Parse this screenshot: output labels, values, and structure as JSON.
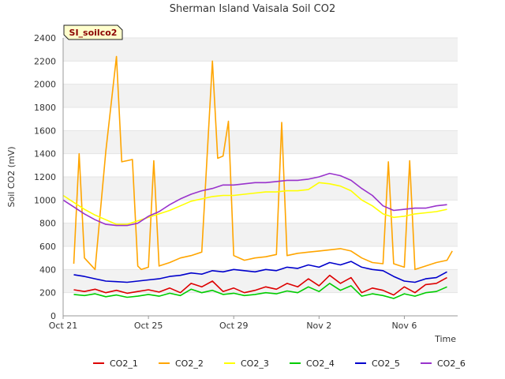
{
  "chart_data": {
    "type": "line",
    "title": "Sherman Island Vaisala Soil CO2",
    "badge": "SI_soilco2",
    "xlabel": "Time",
    "ylabel": "Soil CO2 (mV)",
    "ylim": [
      0,
      2400
    ],
    "yticks": [
      0,
      200,
      400,
      600,
      800,
      1000,
      1200,
      1400,
      1600,
      1800,
      2000,
      2200,
      2400
    ],
    "xlim": [
      "2023-10-21",
      "2023-11-08T12:00"
    ],
    "xtick_labels": [
      "Oct 21",
      "Oct 25",
      "Oct 29",
      "Nov 2",
      "Nov 6"
    ],
    "xtick_dates": [
      "2023-10-21",
      "2023-10-25",
      "2023-10-29",
      "2023-11-02",
      "2023-11-06"
    ],
    "grid": "horizontal bands",
    "legend_position": "bottom",
    "series": [
      {
        "name": "CO2_1",
        "color": "#dd0000",
        "x": [
          "2023-10-21T12:00",
          "2023-10-22",
          "2023-10-22T12:00",
          "2023-10-23",
          "2023-10-23T12:00",
          "2023-10-24",
          "2023-10-24T12:00",
          "2023-10-25",
          "2023-10-25T12:00",
          "2023-10-26",
          "2023-10-26T12:00",
          "2023-10-27",
          "2023-10-27T12:00",
          "2023-10-28",
          "2023-10-28T12:00",
          "2023-10-29",
          "2023-10-29T12:00",
          "2023-10-30",
          "2023-10-30T12:00",
          "2023-10-31",
          "2023-10-31T12:00",
          "2023-11-01",
          "2023-11-01T12:00",
          "2023-11-02",
          "2023-11-02T12:00",
          "2023-11-03",
          "2023-11-03T12:00",
          "2023-11-04",
          "2023-11-04T12:00",
          "2023-11-05",
          "2023-11-05T12:00",
          "2023-11-06",
          "2023-11-06T12:00",
          "2023-11-07",
          "2023-11-07T12:00",
          "2023-11-08"
        ],
        "values": [
          225,
          210,
          230,
          200,
          220,
          195,
          210,
          225,
          205,
          240,
          200,
          280,
          250,
          300,
          210,
          240,
          200,
          220,
          250,
          230,
          280,
          250,
          320,
          260,
          350,
          280,
          330,
          200,
          240,
          220,
          180,
          250,
          200,
          270,
          280,
          330
        ]
      },
      {
        "name": "CO2_2",
        "color": "#ffa500",
        "x": [
          "2023-10-21T12:00",
          "2023-10-21T18:00",
          "2023-10-22",
          "2023-10-22T12:00",
          "2023-10-23",
          "2023-10-23T12:00",
          "2023-10-23T18:00",
          "2023-10-24",
          "2023-10-24T06:00",
          "2023-10-24T12:00",
          "2023-10-24T16:00",
          "2023-10-25",
          "2023-10-25T06:00",
          "2023-10-25T12:00",
          "2023-10-26",
          "2023-10-26T12:00",
          "2023-10-27",
          "2023-10-27T12:00",
          "2023-10-28",
          "2023-10-28T06:00",
          "2023-10-28T12:00",
          "2023-10-28T18:00",
          "2023-10-29",
          "2023-10-29T12:00",
          "2023-10-30",
          "2023-10-30T12:00",
          "2023-10-31",
          "2023-10-31T06:00",
          "2023-10-31T12:00",
          "2023-11-01",
          "2023-11-01T12:00",
          "2023-11-02",
          "2023-11-02T12:00",
          "2023-11-03",
          "2023-11-03T12:00",
          "2023-11-04",
          "2023-11-04T12:00",
          "2023-11-05",
          "2023-11-05T06:00",
          "2023-11-05T12:00",
          "2023-11-06",
          "2023-11-06T06:00",
          "2023-11-06T12:00",
          "2023-11-07",
          "2023-11-07T12:00",
          "2023-11-08",
          "2023-11-08T06:00"
        ],
        "values": [
          450,
          1400,
          500,
          400,
          1420,
          2240,
          1330,
          1340,
          1350,
          430,
          400,
          420,
          1340,
          430,
          460,
          500,
          520,
          550,
          2200,
          1360,
          1380,
          1680,
          520,
          480,
          500,
          510,
          530,
          1670,
          520,
          540,
          550,
          560,
          570,
          580,
          560,
          500,
          460,
          450,
          1330,
          450,
          420,
          1340,
          400,
          430,
          460,
          480,
          560
        ]
      },
      {
        "name": "CO2_3",
        "color": "#ffff00",
        "x": [
          "2023-10-21",
          "2023-10-21T12:00",
          "2023-10-22",
          "2023-10-22T12:00",
          "2023-10-23",
          "2023-10-23T12:00",
          "2023-10-24",
          "2023-10-24T12:00",
          "2023-10-25",
          "2023-10-25T12:00",
          "2023-10-26",
          "2023-10-26T12:00",
          "2023-10-27",
          "2023-10-27T12:00",
          "2023-10-28",
          "2023-10-28T12:00",
          "2023-10-29",
          "2023-10-29T12:00",
          "2023-10-30",
          "2023-10-30T12:00",
          "2023-10-31",
          "2023-10-31T12:00",
          "2023-11-01",
          "2023-11-01T12:00",
          "2023-11-02",
          "2023-11-02T12:00",
          "2023-11-03",
          "2023-11-03T12:00",
          "2023-11-04",
          "2023-11-04T12:00",
          "2023-11-05",
          "2023-11-05T12:00",
          "2023-11-06",
          "2023-11-06T12:00",
          "2023-11-07",
          "2023-11-07T12:00",
          "2023-11-08"
        ],
        "values": [
          1040,
          980,
          920,
          870,
          830,
          790,
          790,
          820,
          850,
          880,
          910,
          950,
          990,
          1010,
          1030,
          1040,
          1040,
          1050,
          1060,
          1070,
          1070,
          1080,
          1080,
          1090,
          1150,
          1140,
          1120,
          1080,
          1000,
          950,
          880,
          850,
          860,
          880,
          890,
          900,
          920
        ]
      },
      {
        "name": "CO2_4",
        "color": "#00cc00",
        "x": [
          "2023-10-21T12:00",
          "2023-10-22",
          "2023-10-22T12:00",
          "2023-10-23",
          "2023-10-23T12:00",
          "2023-10-24",
          "2023-10-24T12:00",
          "2023-10-25",
          "2023-10-25T12:00",
          "2023-10-26",
          "2023-10-26T12:00",
          "2023-10-27",
          "2023-10-27T12:00",
          "2023-10-28",
          "2023-10-28T12:00",
          "2023-10-29",
          "2023-10-29T12:00",
          "2023-10-30",
          "2023-10-30T12:00",
          "2023-10-31",
          "2023-10-31T12:00",
          "2023-11-01",
          "2023-11-01T12:00",
          "2023-11-02",
          "2023-11-02T12:00",
          "2023-11-03",
          "2023-11-03T12:00",
          "2023-11-04",
          "2023-11-04T12:00",
          "2023-11-05",
          "2023-11-05T12:00",
          "2023-11-06",
          "2023-11-06T12:00",
          "2023-11-07",
          "2023-11-07T12:00",
          "2023-11-08"
        ],
        "values": [
          185,
          175,
          190,
          165,
          180,
          160,
          170,
          185,
          170,
          195,
          175,
          230,
          200,
          220,
          185,
          195,
          175,
          185,
          200,
          190,
          215,
          200,
          250,
          210,
          280,
          220,
          260,
          170,
          190,
          175,
          150,
          190,
          170,
          200,
          210,
          250
        ]
      },
      {
        "name": "CO2_5",
        "color": "#0000cc",
        "x": [
          "2023-10-21T12:00",
          "2023-10-22",
          "2023-10-22T12:00",
          "2023-10-23",
          "2023-10-23T12:00",
          "2023-10-24",
          "2023-10-24T12:00",
          "2023-10-25",
          "2023-10-25T12:00",
          "2023-10-26",
          "2023-10-26T12:00",
          "2023-10-27",
          "2023-10-27T12:00",
          "2023-10-28",
          "2023-10-28T12:00",
          "2023-10-29",
          "2023-10-29T12:00",
          "2023-10-30",
          "2023-10-30T12:00",
          "2023-10-31",
          "2023-10-31T12:00",
          "2023-11-01",
          "2023-11-01T12:00",
          "2023-11-02",
          "2023-11-02T12:00",
          "2023-11-03",
          "2023-11-03T12:00",
          "2023-11-04",
          "2023-11-04T12:00",
          "2023-11-05",
          "2023-11-05T12:00",
          "2023-11-06",
          "2023-11-06T12:00",
          "2023-11-07",
          "2023-11-07T12:00",
          "2023-11-08"
        ],
        "values": [
          355,
          340,
          320,
          300,
          295,
          290,
          300,
          310,
          320,
          340,
          350,
          370,
          360,
          390,
          380,
          400,
          390,
          380,
          400,
          390,
          420,
          410,
          440,
          420,
          460,
          440,
          470,
          420,
          400,
          390,
          340,
          300,
          290,
          320,
          330,
          380
        ]
      },
      {
        "name": "CO2_6",
        "color": "#9933cc",
        "x": [
          "2023-10-21",
          "2023-10-21T12:00",
          "2023-10-22",
          "2023-10-22T12:00",
          "2023-10-23",
          "2023-10-23T12:00",
          "2023-10-24",
          "2023-10-24T12:00",
          "2023-10-25",
          "2023-10-25T12:00",
          "2023-10-26",
          "2023-10-26T12:00",
          "2023-10-27",
          "2023-10-27T12:00",
          "2023-10-28",
          "2023-10-28T12:00",
          "2023-10-29",
          "2023-10-29T12:00",
          "2023-10-30",
          "2023-10-30T12:00",
          "2023-10-31",
          "2023-10-31T12:00",
          "2023-11-01",
          "2023-11-01T12:00",
          "2023-11-02",
          "2023-11-02T12:00",
          "2023-11-03",
          "2023-11-03T12:00",
          "2023-11-04",
          "2023-11-04T12:00",
          "2023-11-05",
          "2023-11-05T12:00",
          "2023-11-06",
          "2023-11-06T12:00",
          "2023-11-07",
          "2023-11-07T12:00",
          "2023-11-08"
        ],
        "values": [
          1000,
          940,
          880,
          830,
          790,
          780,
          780,
          800,
          860,
          900,
          960,
          1010,
          1050,
          1080,
          1100,
          1130,
          1130,
          1140,
          1150,
          1150,
          1160,
          1170,
          1170,
          1180,
          1200,
          1230,
          1210,
          1170,
          1100,
          1040,
          950,
          910,
          920,
          930,
          930,
          950,
          960
        ]
      }
    ]
  }
}
